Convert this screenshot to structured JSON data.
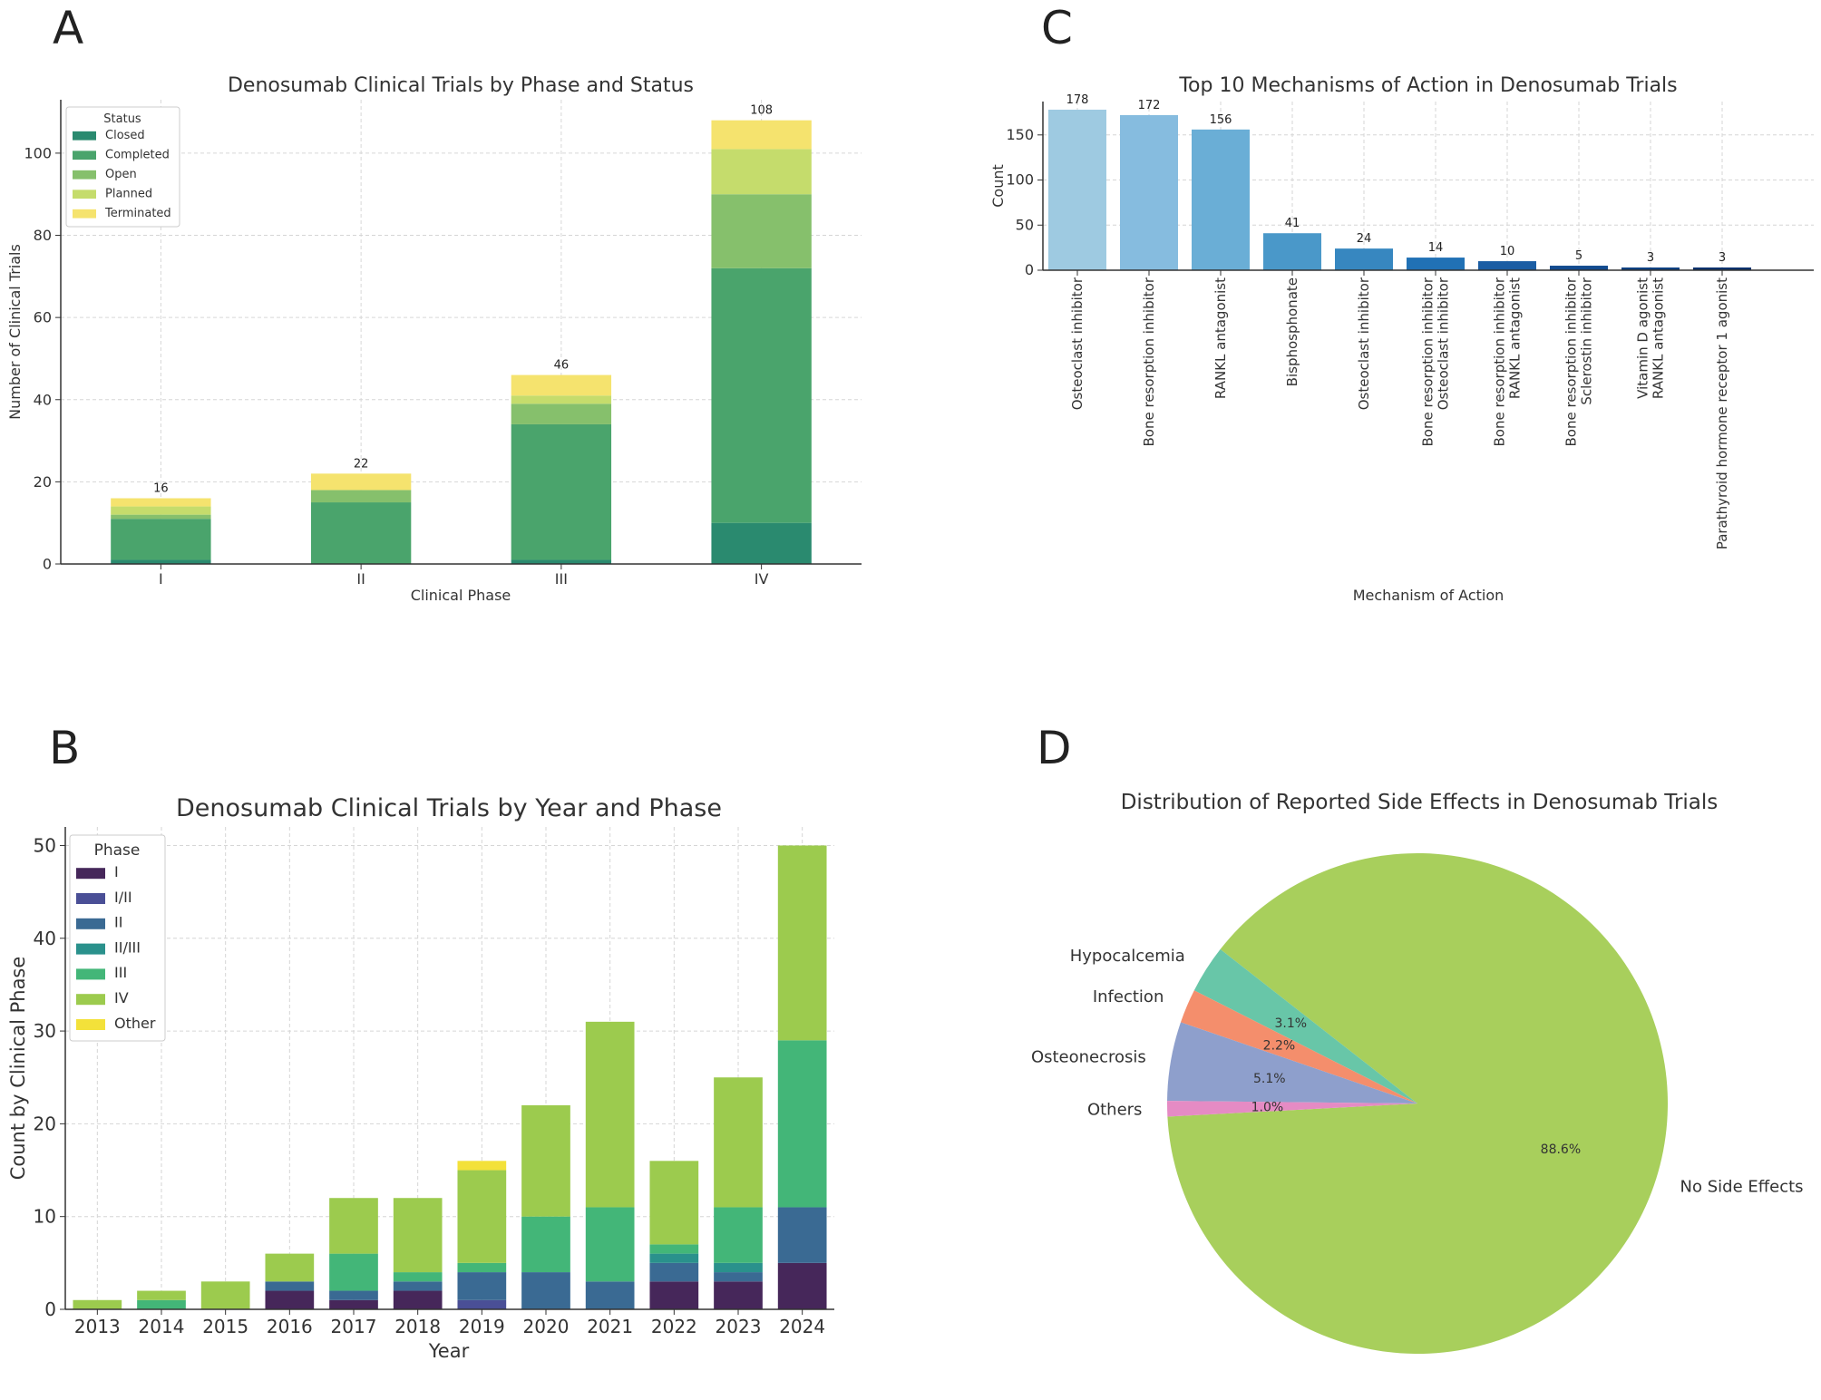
{
  "panels": {
    "a": "A",
    "b": "B",
    "c": "C",
    "d": "D"
  },
  "chart_data": [
    {
      "id": "A",
      "type": "bar",
      "stacked": true,
      "title": "Denosumab Clinical Trials by Phase and Status",
      "xlabel": "Clinical Phase",
      "ylabel": "Number of Clinical Trials",
      "categories": [
        "I",
        "II",
        "III",
        "IV"
      ],
      "ylim": [
        0,
        113
      ],
      "yticks": [
        0,
        20,
        40,
        60,
        80,
        100
      ],
      "grid": true,
      "legend_title": "Status",
      "legend_position": "top-left",
      "series": [
        {
          "name": "Closed",
          "color": "#2a8a6f",
          "values": [
            1,
            0,
            1,
            10
          ]
        },
        {
          "name": "Completed",
          "color": "#4aa46c",
          "values": [
            10,
            15,
            33,
            62
          ]
        },
        {
          "name": "Open",
          "color": "#86c06c",
          "values": [
            1,
            3,
            5,
            18
          ]
        },
        {
          "name": "Planned",
          "color": "#c5dc6c",
          "values": [
            2,
            0,
            2,
            11
          ]
        },
        {
          "name": "Terminated",
          "color": "#f5e36e",
          "values": [
            2,
            4,
            5,
            7
          ]
        }
      ],
      "totals": [
        16,
        22,
        46,
        108
      ]
    },
    {
      "id": "C",
      "type": "bar",
      "title": "Top 10 Mechanisms of Action in Denosumab Trials",
      "xlabel": "Mechanism of Action",
      "ylabel": "Count",
      "ylim": [
        0,
        187
      ],
      "yticks": [
        0,
        50,
        100,
        150
      ],
      "grid": true,
      "categories": [
        [
          "Osteoclast inhibitor"
        ],
        [
          "Bone resorption inhibitor"
        ],
        [
          "RANKL antagonist"
        ],
        [
          "Bisphosphonate"
        ],
        [
          "Osteoclast inhibitor"
        ],
        [
          "Bone resorption inhibitor",
          "Osteoclast inhibitor"
        ],
        [
          "Bone resorption inhibitor",
          "RANKL antagonist"
        ],
        [
          "Bone resorption inhibitor",
          "Sclerostin inhibitor"
        ],
        [
          "Vitamin D agonist",
          "RANKL antagonist"
        ],
        [
          "Parathyroid hormone receptor 1 agonist"
        ]
      ],
      "values": [
        178,
        172,
        156,
        41,
        24,
        14,
        10,
        5,
        3,
        3
      ],
      "colors": [
        "#9ecae1",
        "#86bcdf",
        "#6aaed6",
        "#4a98c9",
        "#3787c0",
        "#2171b5",
        "#1b5da3",
        "#134b8f",
        "#0d3f80",
        "#08306b"
      ]
    },
    {
      "id": "B",
      "type": "bar",
      "stacked": true,
      "title": "Denosumab Clinical Trials by Year and Phase",
      "xlabel": "Year",
      "ylabel": "Count by Clinical Phase",
      "categories": [
        "2013",
        "2014",
        "2015",
        "2016",
        "2017",
        "2018",
        "2019",
        "2020",
        "2021",
        "2022",
        "2023",
        "2024"
      ],
      "ylim": [
        0,
        52
      ],
      "yticks": [
        0,
        10,
        20,
        30,
        40,
        50
      ],
      "grid": true,
      "legend_title": "Phase",
      "legend_position": "top-left",
      "series": [
        {
          "name": "I",
          "color": "#46275a",
          "values": [
            0,
            0,
            0,
            2,
            1,
            2,
            0,
            0,
            0,
            3,
            3,
            5
          ]
        },
        {
          "name": "I/II",
          "color": "#4a4f96",
          "values": [
            0,
            0,
            0,
            0,
            0,
            0,
            1,
            0,
            0,
            0,
            0,
            0
          ]
        },
        {
          "name": "II",
          "color": "#3a6a93",
          "values": [
            0,
            0,
            0,
            1,
            1,
            1,
            3,
            4,
            3,
            2,
            1,
            6
          ]
        },
        {
          "name": "II/III",
          "color": "#2a918c",
          "values": [
            0,
            0,
            0,
            0,
            0,
            0,
            0,
            0,
            0,
            1,
            1,
            0
          ]
        },
        {
          "name": "III",
          "color": "#43b678",
          "values": [
            0,
            1,
            0,
            0,
            4,
            1,
            1,
            6,
            8,
            1,
            6,
            18
          ]
        },
        {
          "name": "IV",
          "color": "#9ccb4e",
          "values": [
            1,
            1,
            3,
            3,
            6,
            8,
            10,
            12,
            20,
            9,
            14,
            21
          ]
        },
        {
          "name": "Other",
          "color": "#f3e13a",
          "values": [
            0,
            0,
            0,
            0,
            0,
            0,
            1,
            0,
            0,
            0,
            0,
            0
          ]
        }
      ]
    },
    {
      "id": "D",
      "type": "pie",
      "title": "Distribution of Reported Side Effects in Denosumab Trials",
      "slices": [
        {
          "label": "No Side Effects",
          "value": 88.6,
          "pct_label": "88.6%",
          "color": "#a8cf5c"
        },
        {
          "label": "Hypocalcemia",
          "value": 3.1,
          "pct_label": "3.1%",
          "color": "#68c6a8"
        },
        {
          "label": "Infection",
          "value": 2.2,
          "pct_label": "2.2%",
          "color": "#f48e6c"
        },
        {
          "label": "Osteonecrosis",
          "value": 5.1,
          "pct_label": "5.1%",
          "color": "#8e9fcc"
        },
        {
          "label": "Others",
          "value": 1.0,
          "pct_label": "1.0%",
          "color": "#e58bc4"
        }
      ]
    }
  ]
}
